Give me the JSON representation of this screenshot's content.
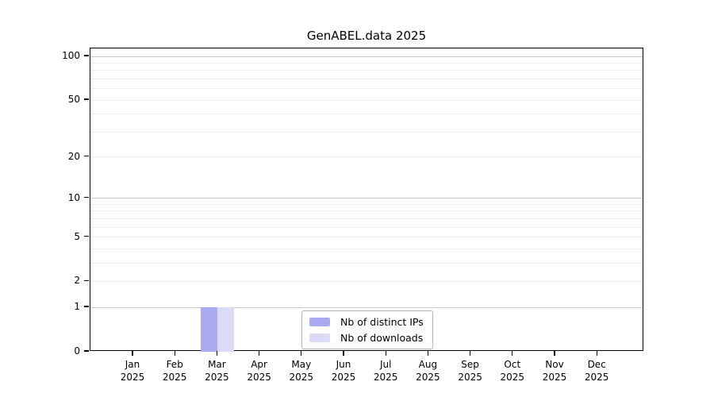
{
  "chart_data": {
    "type": "bar",
    "title": "GenABEL.data 2025",
    "categories": [
      "Jan",
      "Feb",
      "Mar",
      "Apr",
      "May",
      "Jun",
      "Jul",
      "Aug",
      "Sep",
      "Oct",
      "Nov",
      "Dec"
    ],
    "category_year": "2025",
    "series": [
      {
        "name": "Nb of distinct IPs",
        "color": "#aaaaf2",
        "values": [
          0,
          0,
          1,
          0,
          0,
          0,
          0,
          0,
          0,
          0,
          0,
          0
        ]
      },
      {
        "name": "Nb of downloads",
        "color": "#dbdbf8",
        "values": [
          0,
          0,
          1,
          0,
          0,
          0,
          0,
          0,
          0,
          0,
          0,
          0
        ]
      }
    ],
    "yscale": "log1p",
    "ylim": [
      0,
      113
    ],
    "yticks": [
      0,
      1,
      2,
      5,
      10,
      20,
      50,
      100
    ],
    "major_gridlines": [
      1,
      10,
      100
    ],
    "minor_gridlines": [
      2,
      3,
      4,
      5,
      6,
      7,
      8,
      9,
      20,
      30,
      40,
      50,
      60,
      70,
      80,
      90
    ],
    "grid": true,
    "legend_position": "bottom-center"
  },
  "colors": {
    "background": "#ffffff",
    "axis": "#000000",
    "major_grid": "#c9c9c9",
    "minor_grid": "#efefef",
    "legend_border": "#b3b3b3",
    "text": "#000000"
  }
}
